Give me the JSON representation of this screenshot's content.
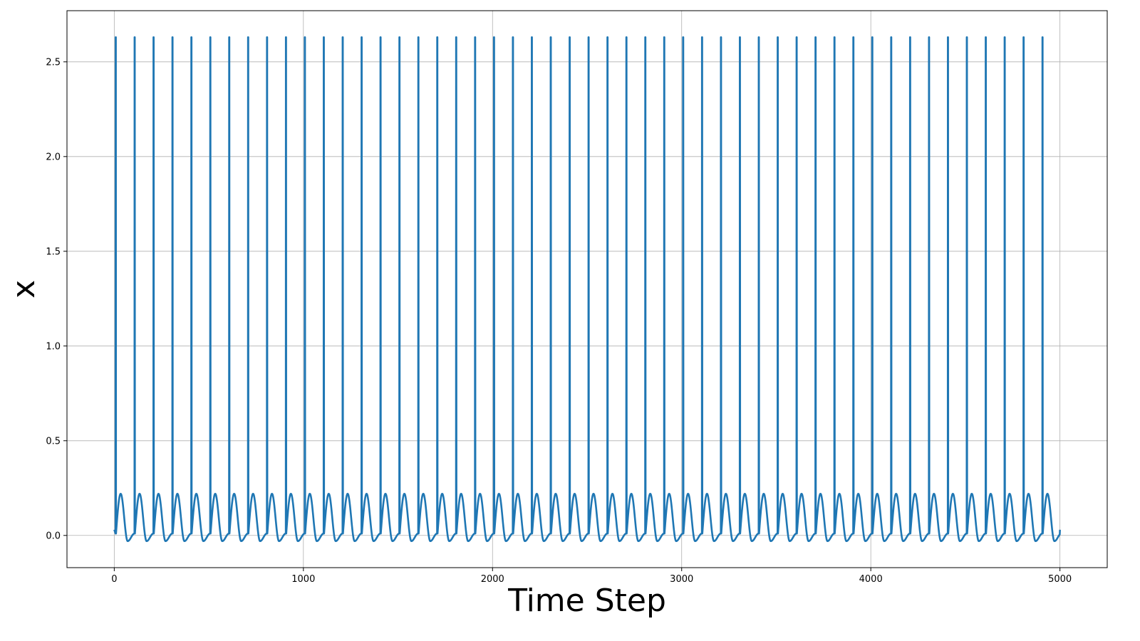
{
  "chart_data": {
    "type": "line",
    "title": "",
    "xlabel": "Time Step",
    "ylabel": "x",
    "xlim": [
      -250,
      5250
    ],
    "ylim": [
      -0.17,
      2.77
    ],
    "xticks": [
      0,
      1000,
      2000,
      3000,
      4000,
      5000
    ],
    "xtick_labels": [
      "0",
      "1000",
      "2000",
      "3000",
      "4000",
      "5000"
    ],
    "yticks": [
      0.0,
      0.5,
      1.0,
      1.5,
      2.0,
      2.5
    ],
    "ytick_labels": [
      "0.0",
      "0.5",
      "1.0",
      "1.5",
      "2.0",
      "2.5"
    ],
    "grid": true,
    "series": [
      {
        "color": "#1f77b4",
        "period": 100,
        "spike_times": [
          7,
          107,
          207,
          307,
          407,
          507,
          607,
          707,
          807,
          907,
          1007,
          1107,
          1207,
          1307,
          1407,
          1507,
          1607,
          1707,
          1807,
          1907,
          2007,
          2107,
          2207,
          2307,
          2407,
          2507,
          2607,
          2707,
          2807,
          2907,
          3007,
          3107,
          3207,
          3307,
          3407,
          3507,
          3607,
          3707,
          3807,
          3907,
          4007,
          4107,
          4207,
          4307,
          4407,
          4507,
          4607,
          4707,
          4807,
          4907
        ],
        "spike_peak": 2.63,
        "spike_trough": 0.01,
        "secondary_peak": 0.22,
        "secondary_peak_offset": 27,
        "minimum": -0.03,
        "minimum_offset": 64,
        "x_start": 0,
        "x_end": 5000,
        "y_start": 0.03,
        "y_end": 0.03
      }
    ]
  }
}
